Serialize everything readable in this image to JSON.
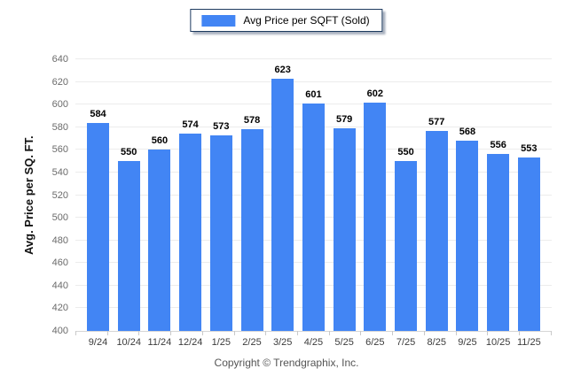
{
  "legend": {
    "label": "Avg Price per SQFT (Sold)",
    "swatch_color": "#4285f4"
  },
  "footer": {
    "copyright": "Copyright © Trendgraphix, Inc."
  },
  "colors": {
    "bar": "#4285f4",
    "gridline": "#ececec",
    "axis_line": "#d6d6d6",
    "legend_border": "#1d3a5f"
  },
  "chart_data": {
    "type": "bar",
    "title": "",
    "xlabel": "",
    "ylabel": "Avg. Price per SQ. FT.",
    "series_name": "Avg Price per SQFT (Sold)",
    "categories": [
      "9/24",
      "10/24",
      "11/24",
      "12/24",
      "1/25",
      "2/25",
      "3/25",
      "4/25",
      "5/25",
      "6/25",
      "7/25",
      "8/25",
      "9/25",
      "10/25",
      "11/25"
    ],
    "values": [
      584,
      550,
      560,
      574,
      573,
      578,
      623,
      601,
      579,
      602,
      550,
      577,
      568,
      556,
      553
    ],
    "ylim": [
      400,
      640
    ],
    "ytick_step": 20,
    "grid": true,
    "legend_position": "top-center",
    "bar_color": "#4285f4"
  }
}
